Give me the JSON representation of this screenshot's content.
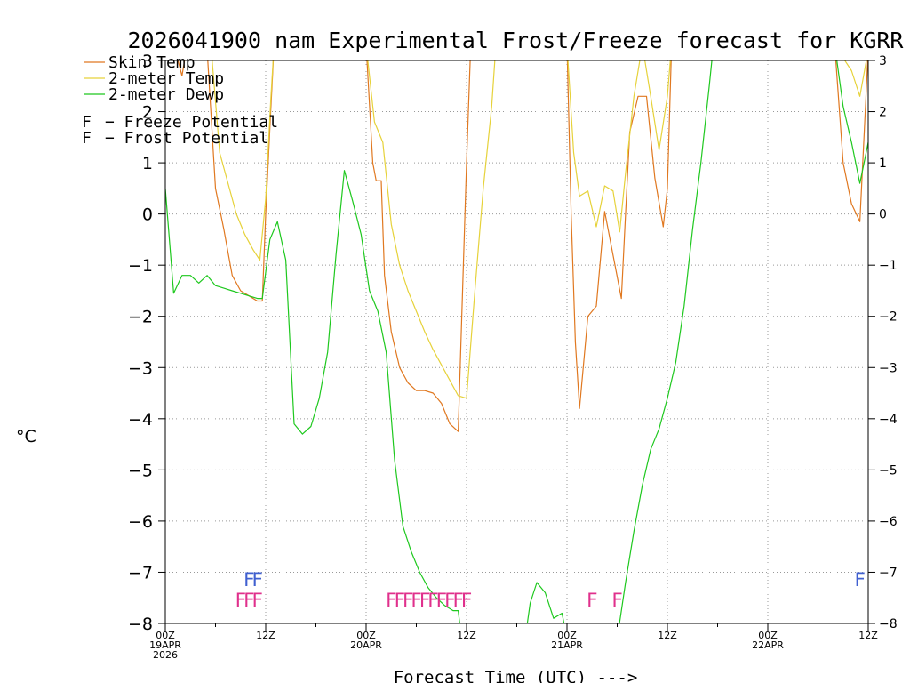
{
  "chart_data": {
    "type": "line",
    "title": "2026041900 nam Experimental Frost/Freeze forecast for KGRR",
    "xlabel": "Forecast Time (UTC) --->",
    "ylabel": "°C",
    "ylim": [
      -8,
      3
    ],
    "xlim": [
      0,
      84
    ],
    "yticks": [
      -8,
      -7,
      -6,
      -5,
      -4,
      -3,
      -2,
      -1,
      0,
      1,
      2,
      3
    ],
    "ytick_labels": [
      "−8",
      "−7",
      "−6",
      "−5",
      "−4",
      "−3",
      "−2",
      "−1",
      "0",
      "1",
      "2",
      "3"
    ],
    "xticks": [
      {
        "h": 0,
        "lines": [
          "00Z",
          "19APR",
          "2026"
        ]
      },
      {
        "h": 12,
        "lines": [
          "12Z"
        ]
      },
      {
        "h": 24,
        "lines": [
          "00Z",
          "20APR"
        ]
      },
      {
        "h": 36,
        "lines": [
          "12Z"
        ]
      },
      {
        "h": 48,
        "lines": [
          "00Z",
          "21APR"
        ]
      },
      {
        "h": 60,
        "lines": [
          "12Z"
        ]
      },
      {
        "h": 72,
        "lines": [
          "00Z",
          "22APR"
        ]
      },
      {
        "h": 84,
        "lines": [
          "12Z"
        ]
      }
    ],
    "grid": true,
    "series": [
      {
        "name": "Skin Temp",
        "color": "#e07820",
        "points": [
          [
            1.2,
            3.2
          ],
          [
            2.0,
            2.7
          ],
          [
            2.6,
            3.3
          ],
          [
            5.0,
            3.2
          ],
          [
            6.0,
            0.5
          ],
          [
            7.0,
            -0.3
          ],
          [
            8.0,
            -1.2
          ],
          [
            9.0,
            -1.5
          ],
          [
            10.0,
            -1.6
          ],
          [
            11.0,
            -1.7
          ],
          [
            11.6,
            -1.7
          ],
          [
            12.0,
            0.0
          ],
          [
            12.6,
            2.0
          ],
          [
            13.0,
            3.3
          ],
          [
            24.0,
            3.3
          ],
          [
            24.8,
            1.0
          ],
          [
            25.2,
            0.65
          ],
          [
            25.8,
            0.65
          ],
          [
            26.2,
            -1.2
          ],
          [
            27.0,
            -2.3
          ],
          [
            28.0,
            -3.0
          ],
          [
            29.0,
            -3.3
          ],
          [
            30.0,
            -3.45
          ],
          [
            31.0,
            -3.45
          ],
          [
            32.0,
            -3.5
          ],
          [
            33.0,
            -3.7
          ],
          [
            34.0,
            -4.1
          ],
          [
            35.0,
            -4.25
          ],
          [
            36.0,
            1.0
          ],
          [
            36.5,
            3.3
          ],
          [
            48.0,
            3.3
          ],
          [
            48.5,
            0.0
          ],
          [
            49.0,
            -2.5
          ],
          [
            49.5,
            -3.8
          ],
          [
            50.5,
            -2.0
          ],
          [
            51.5,
            -1.8
          ],
          [
            52.5,
            0.05
          ],
          [
            53.5,
            -0.8
          ],
          [
            54.5,
            -1.65
          ],
          [
            55.0,
            0.0
          ],
          [
            55.5,
            1.6
          ],
          [
            56.5,
            2.3
          ],
          [
            57.5,
            2.3
          ],
          [
            58.5,
            0.7
          ],
          [
            59.5,
            -0.25
          ],
          [
            60.0,
            0.5
          ],
          [
            60.5,
            3.3
          ],
          [
            80.0,
            3.3
          ],
          [
            81.0,
            1.0
          ],
          [
            82.0,
            0.2
          ],
          [
            83.0,
            -0.15
          ],
          [
            84.0,
            3.2
          ]
        ]
      },
      {
        "name": "2-meter Temp",
        "color": "#e6d23a",
        "points": [
          [
            2.0,
            3.2
          ],
          [
            5.5,
            3.2
          ],
          [
            6.5,
            1.2
          ],
          [
            7.5,
            0.6
          ],
          [
            8.5,
            0.0
          ],
          [
            9.5,
            -0.4
          ],
          [
            10.5,
            -0.7
          ],
          [
            11.3,
            -0.9
          ],
          [
            12.0,
            0.3
          ],
          [
            12.6,
            2.2
          ],
          [
            13.0,
            3.3
          ],
          [
            24.0,
            3.3
          ],
          [
            25.0,
            1.8
          ],
          [
            26.0,
            1.4
          ],
          [
            27.0,
            -0.2
          ],
          [
            28.0,
            -1.0
          ],
          [
            29.0,
            -1.5
          ],
          [
            30.0,
            -1.9
          ],
          [
            31.0,
            -2.3
          ],
          [
            32.0,
            -2.65
          ],
          [
            33.0,
            -2.95
          ],
          [
            34.0,
            -3.25
          ],
          [
            35.0,
            -3.55
          ],
          [
            36.0,
            -3.6
          ],
          [
            37.0,
            -1.5
          ],
          [
            38.0,
            0.5
          ],
          [
            39.0,
            2.1
          ],
          [
            39.5,
            3.3
          ],
          [
            48.0,
            3.3
          ],
          [
            48.8,
            1.2
          ],
          [
            49.5,
            0.35
          ],
          [
            50.5,
            0.45
          ],
          [
            51.5,
            -0.25
          ],
          [
            52.5,
            0.55
          ],
          [
            53.5,
            0.45
          ],
          [
            54.3,
            -0.35
          ],
          [
            55.0,
            0.8
          ],
          [
            56.0,
            2.3
          ],
          [
            57.0,
            3.3
          ],
          [
            58.0,
            2.3
          ],
          [
            59.0,
            1.25
          ],
          [
            60.0,
            2.3
          ],
          [
            60.5,
            3.3
          ],
          [
            80.0,
            3.3
          ],
          [
            82.0,
            2.8
          ],
          [
            83.0,
            2.3
          ],
          [
            84.0,
            3.2
          ]
        ]
      },
      {
        "name": "2-meter Dewp",
        "color": "#1ec81e",
        "points": [
          [
            0.0,
            0.5
          ],
          [
            1.0,
            -1.55
          ],
          [
            2.0,
            -1.2
          ],
          [
            3.0,
            -1.2
          ],
          [
            4.0,
            -1.35
          ],
          [
            5.0,
            -1.2
          ],
          [
            6.0,
            -1.4
          ],
          [
            7.0,
            -1.45
          ],
          [
            8.0,
            -1.5
          ],
          [
            9.0,
            -1.55
          ],
          [
            10.0,
            -1.6
          ],
          [
            11.0,
            -1.65
          ],
          [
            11.6,
            -1.65
          ],
          [
            12.5,
            -0.5
          ],
          [
            13.4,
            -0.15
          ],
          [
            14.4,
            -0.9
          ],
          [
            15.4,
            -4.1
          ],
          [
            16.4,
            -4.3
          ],
          [
            17.4,
            -4.15
          ],
          [
            18.4,
            -3.6
          ],
          [
            19.4,
            -2.7
          ],
          [
            20.4,
            -0.8
          ],
          [
            21.4,
            0.85
          ],
          [
            22.4,
            0.25
          ],
          [
            23.4,
            -0.4
          ],
          [
            24.4,
            -1.5
          ],
          [
            25.4,
            -1.9
          ],
          [
            26.4,
            -2.7
          ],
          [
            27.4,
            -4.8
          ],
          [
            28.4,
            -6.1
          ],
          [
            29.4,
            -6.6
          ],
          [
            30.4,
            -7.0
          ],
          [
            31.4,
            -7.3
          ],
          [
            32.4,
            -7.5
          ],
          [
            33.4,
            -7.65
          ],
          [
            34.4,
            -7.75
          ],
          [
            35.0,
            -7.75
          ],
          [
            35.4,
            -8.3
          ],
          [
            43.0,
            -8.3
          ],
          [
            43.6,
            -7.6
          ],
          [
            44.4,
            -7.2
          ],
          [
            45.4,
            -7.4
          ],
          [
            46.4,
            -7.9
          ],
          [
            47.4,
            -7.8
          ],
          [
            48.0,
            -8.3
          ],
          [
            54.0,
            -8.3
          ],
          [
            55.0,
            -7.2
          ],
          [
            56.0,
            -6.2
          ],
          [
            57.0,
            -5.3
          ],
          [
            58.0,
            -4.6
          ],
          [
            59.0,
            -4.2
          ],
          [
            60.0,
            -3.6
          ],
          [
            61.0,
            -2.9
          ],
          [
            62.0,
            -1.8
          ],
          [
            63.0,
            -0.3
          ],
          [
            64.0,
            1.0
          ],
          [
            65.0,
            2.5
          ],
          [
            65.5,
            3.3
          ],
          [
            80.0,
            3.3
          ],
          [
            81.0,
            2.1
          ],
          [
            82.0,
            1.4
          ],
          [
            83.0,
            0.6
          ],
          [
            84.0,
            1.4
          ]
        ]
      }
    ],
    "legend": [
      {
        "label": "Skin Temp",
        "color": "#e07820"
      },
      {
        "label": "2-meter Temp",
        "color": "#e6d23a"
      },
      {
        "label": "2-meter Dewp",
        "color": "#1ec81e"
      }
    ],
    "flag_legend": [
      {
        "symbol": "F",
        "label": "− Freeze Potential",
        "color": "#e0308c"
      },
      {
        "symbol": "F",
        "label": "− Frost Potential",
        "color": "#4060d0"
      }
    ],
    "frost_flags": [
      10,
      11,
      83
    ],
    "freeze_flags": [
      9,
      10,
      11,
      27,
      28,
      29,
      30,
      31,
      32,
      33,
      34,
      35,
      36,
      51,
      54
    ]
  }
}
